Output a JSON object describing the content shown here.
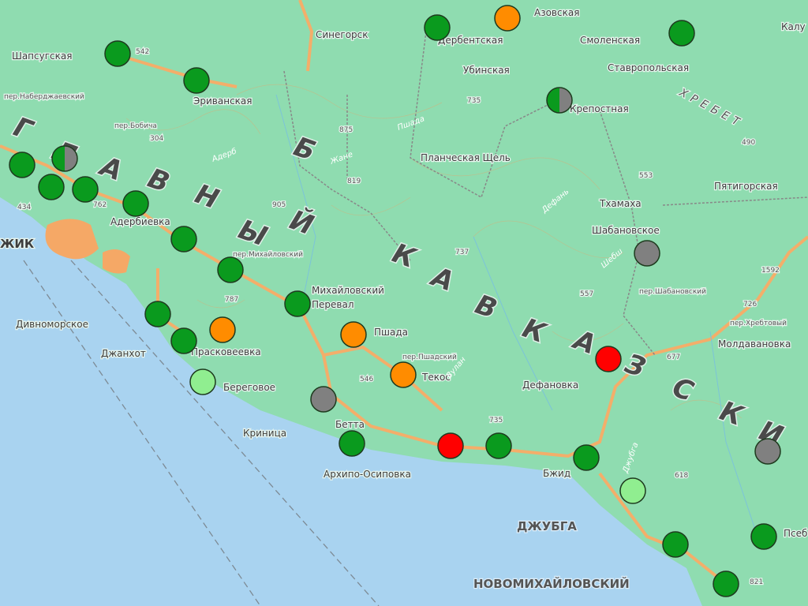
{
  "map": {
    "labels": {
      "shapsugskaya": "Шапсугская",
      "sinegorsk": "Синегорск",
      "erivanskaya": "Эриванская",
      "derbentskaya": "Дербентская",
      "azovskaya": "Азовская",
      "smolenskaya": "Смоленская",
      "kaluzhskaya": "Калу",
      "stavropolskaya": "Ставропольская",
      "ubinskaya": "Убинская",
      "krepostnaya": "Крепостная",
      "planchesk": "Планческая Щель",
      "pyatigorskaya": "Пятигорская",
      "tkhamakha": "Тхамаха",
      "shabanovskoe": "Шабановское",
      "gelendzhik": "ЖИК",
      "aderbievka": "Адербиевка",
      "mikhailovsky": "Михайловский",
      "pereval": "Перевал",
      "divnomorskoe": "Дивноморское",
      "dzhanhot": "Джанхот",
      "praskoveevka": "Прасковеевка",
      "beregovoe": "Береговое",
      "krinitsa": "Криница",
      "betta": "Бетта",
      "arkhipo": "Архипо-Осиповка",
      "pshada": "Пшада",
      "tekos": "Текос",
      "defanovka": "Дефановка",
      "bzhid": "Бжид",
      "dzhubga": "ДЖУБГА",
      "novomikhailovsky": "НОВОМИХАЙЛОВСКИЙ",
      "moldavanovka": "Молдавановка",
      "psebe": "Псеб",
      "big_letters": [
        "Г",
        "Л",
        "А",
        "В",
        "Н",
        "Ы",
        "Й",
        "Б",
        "К",
        "А",
        "В",
        "К",
        "А",
        "З",
        "С",
        "К",
        "И"
      ],
      "ridge": "ХРЕБЕТ",
      "heights": [
        "542",
        "304",
        "434",
        "762",
        "787",
        "875",
        "819",
        "905",
        "735",
        "553",
        "490",
        "737",
        "557",
        "546",
        "735",
        "677",
        "726",
        "618",
        "821",
        "1592"
      ],
      "passes": [
        "пер.Бобича",
        "пер.Михайловский",
        "пер.Шабановский",
        "пер.Хребтовый",
        "пер.Пшадский",
        "пер.Наберджаевский"
      ],
      "rivers": [
        "Адерб",
        "Жане",
        "Пшада",
        "Вулан",
        "Джубга",
        "Шебш",
        "Дефань"
      ]
    },
    "marker_colors": {
      "green": "#0a9a1e",
      "orange": "#ff8c00",
      "gray": "#808080",
      "red": "#ff0000",
      "lightgreen": "#90ee90"
    },
    "markers": [
      "green",
      "green",
      "green",
      "green",
      "green",
      "green",
      "green",
      "green",
      "green",
      "green",
      "green",
      "green",
      "green",
      "green",
      "green",
      "green",
      "green",
      "green",
      "green",
      "green/gray",
      "green/gray",
      "orange",
      "orange",
      "orange",
      "orange",
      "gray",
      "gray",
      "gray",
      "red",
      "red",
      "lightgreen",
      "lightgreen"
    ]
  }
}
